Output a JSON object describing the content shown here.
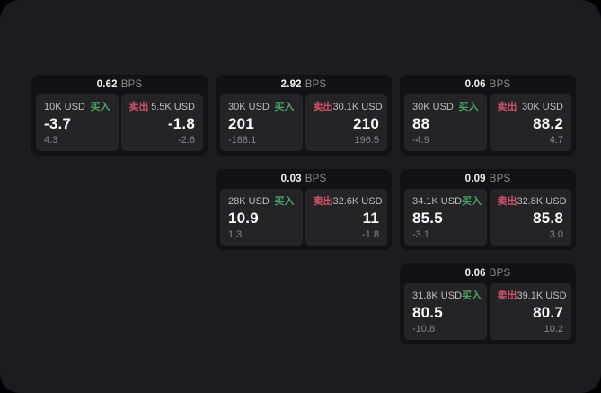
{
  "page": {
    "background": "#000000",
    "panel_background": "#1c1c1e"
  },
  "colors": {
    "card_background": "#121214",
    "tile_background": "#242427",
    "buy_green": "#4aa466",
    "sell_red": "#cf5268",
    "value_white": "#fafafa",
    "label_gray": "#bfbfc2",
    "sub_gray": "#87878a"
  },
  "labels": {
    "bps_unit": "BPS",
    "buy": "买入",
    "sell": "卖出"
  },
  "cards": [
    {
      "row": 1,
      "col": 1,
      "bps": "0.62",
      "buy": {
        "amount": "10K USD",
        "value": "-3.7",
        "sub": "4.3"
      },
      "sell": {
        "amount": "5.5K USD",
        "value": "-1.8",
        "sub": "-2.6"
      }
    },
    {
      "row": 1,
      "col": 2,
      "bps": "2.92",
      "buy": {
        "amount": "30K USD",
        "value": "201",
        "sub": "-188.1"
      },
      "sell": {
        "amount": "30.1K USD",
        "value": "210",
        "sub": "196.5"
      }
    },
    {
      "row": 1,
      "col": 3,
      "bps": "0.06",
      "buy": {
        "amount": "30K USD",
        "value": "88",
        "sub": "-4.9"
      },
      "sell": {
        "amount": "30K USD",
        "value": "88.2",
        "sub": "4.7"
      }
    },
    {
      "row": 2,
      "col": 2,
      "bps": "0.03",
      "buy": {
        "amount": "28K USD",
        "value": "10.9",
        "sub": "1.3"
      },
      "sell": {
        "amount": "32.6K USD",
        "value": "11",
        "sub": "-1.8"
      }
    },
    {
      "row": 2,
      "col": 3,
      "bps": "0.09",
      "buy": {
        "amount": "34.1K USD",
        "value": "85.5",
        "sub": "-3.1"
      },
      "sell": {
        "amount": "32.8K USD",
        "value": "85.8",
        "sub": "3.0"
      }
    },
    {
      "row": 3,
      "col": 3,
      "bps": "0.06",
      "buy": {
        "amount": "31.8K USD",
        "value": "80.5",
        "sub": "-10.8"
      },
      "sell": {
        "amount": "39.1K USD",
        "value": "80.7",
        "sub": "10.2"
      }
    }
  ]
}
